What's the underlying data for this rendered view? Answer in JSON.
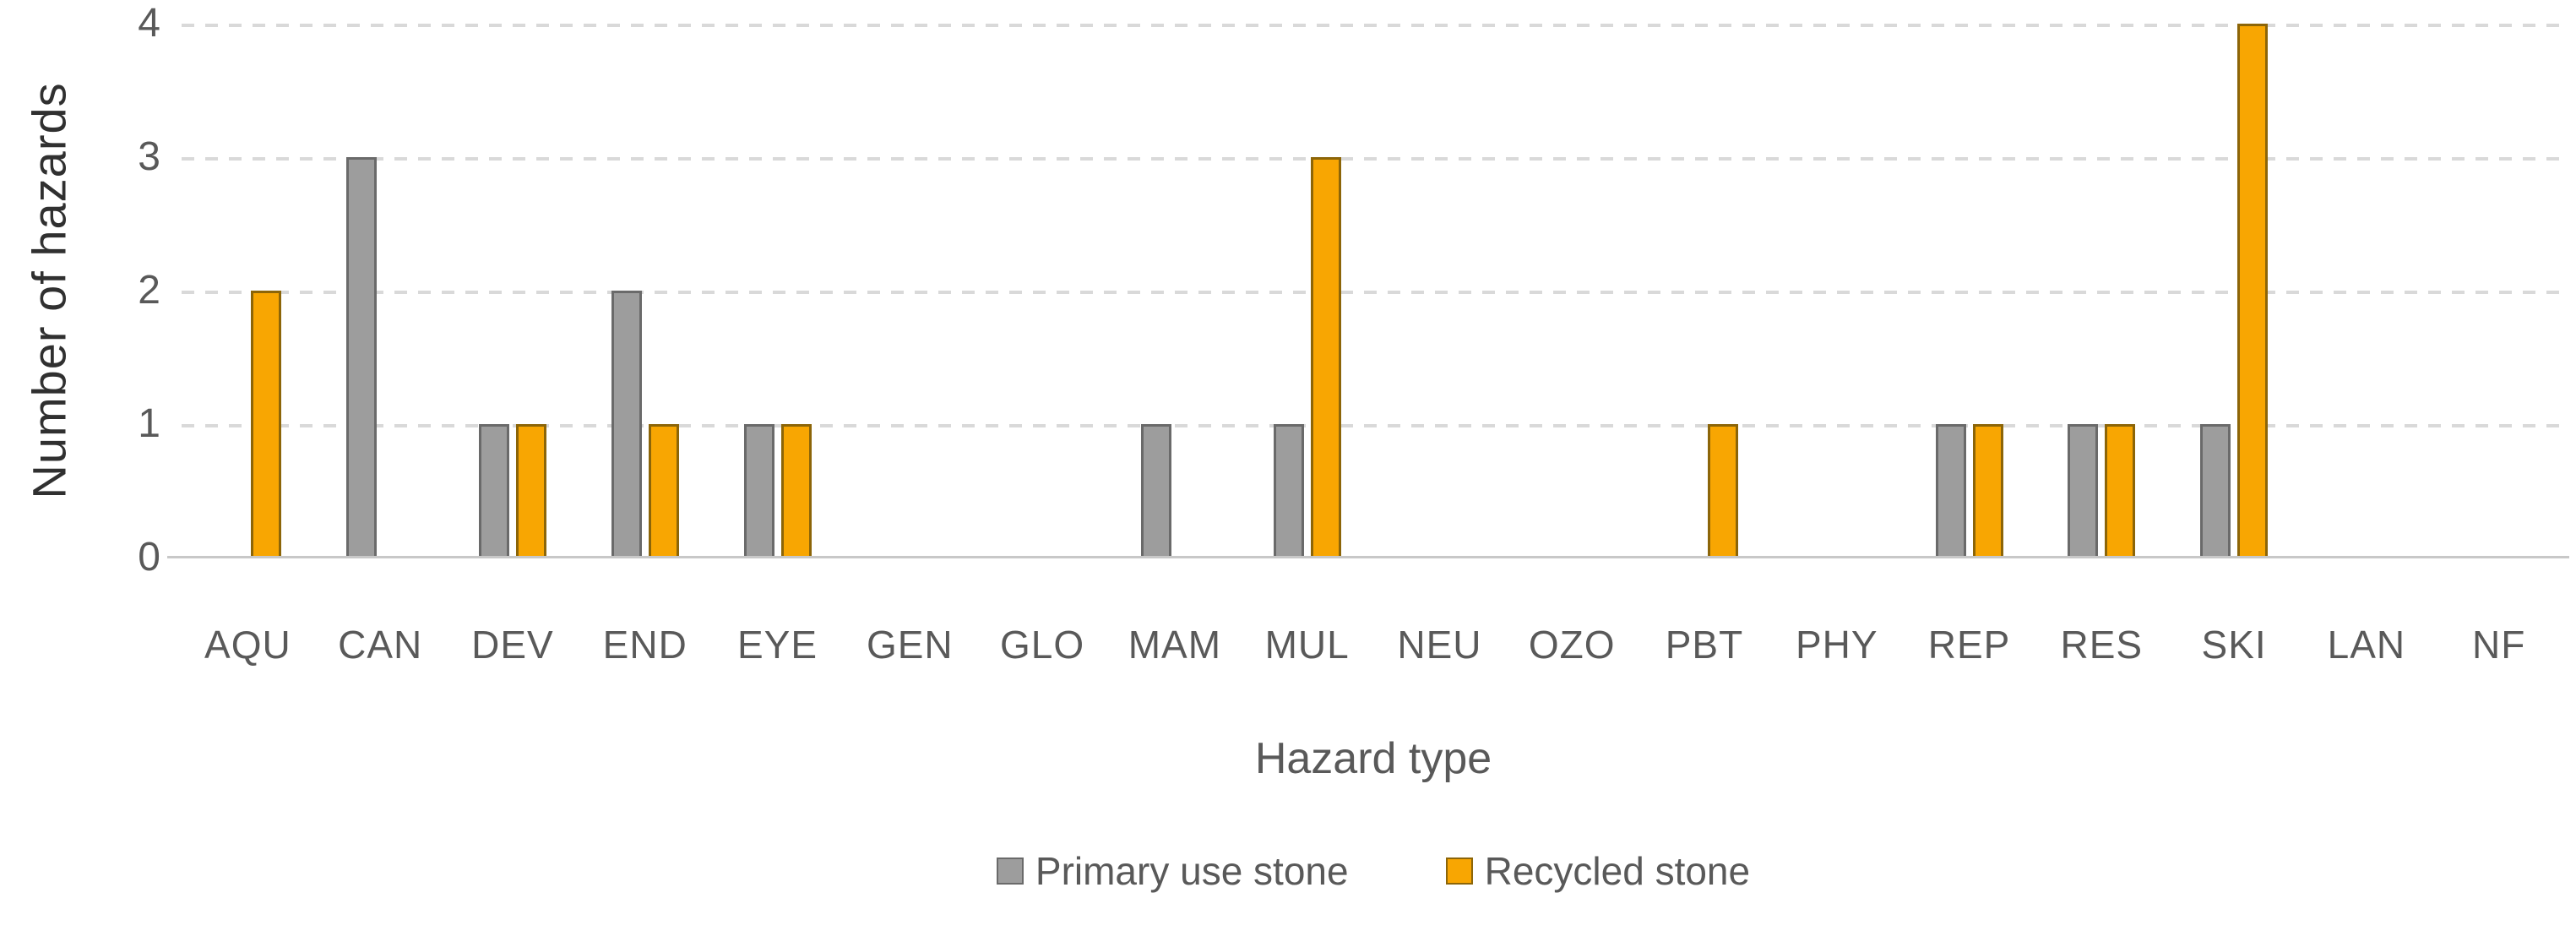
{
  "chart_data": {
    "type": "bar",
    "title": "",
    "xlabel": "Hazard type",
    "ylabel": "Number of hazards",
    "categories": [
      "AQU",
      "CAN",
      "DEV",
      "END",
      "EYE",
      "GEN",
      "GLO",
      "MAM",
      "MUL",
      "NEU",
      "OZO",
      "PBT",
      "PHY",
      "REP",
      "RES",
      "SKI",
      "LAN",
      "NF"
    ],
    "series": [
      {
        "name": "Primary use stone",
        "fill_color": "#9d9d9d",
        "border_color": "#6a6a6a",
        "values": [
          0,
          3,
          1,
          2,
          1,
          0,
          0,
          1,
          1,
          0,
          0,
          0,
          0,
          1,
          1,
          1,
          0,
          0
        ]
      },
      {
        "name": "Recycled stone",
        "fill_color": "#f8a602",
        "border_color": "#8c6508",
        "values": [
          2,
          0,
          1,
          1,
          1,
          0,
          0,
          0,
          3,
          0,
          0,
          1,
          0,
          1,
          1,
          4,
          0,
          0
        ]
      }
    ],
    "ylim": [
      0,
      4
    ],
    "yticks": [
      0,
      1,
      2,
      3,
      4
    ],
    "grid": "dashed horizontal gridlines at 1,2,3,4",
    "legend_position": "bottom center",
    "gridline_color": "#d9d9d9",
    "axis_line_color": "#c8c8c8",
    "text_color": "#595959"
  }
}
